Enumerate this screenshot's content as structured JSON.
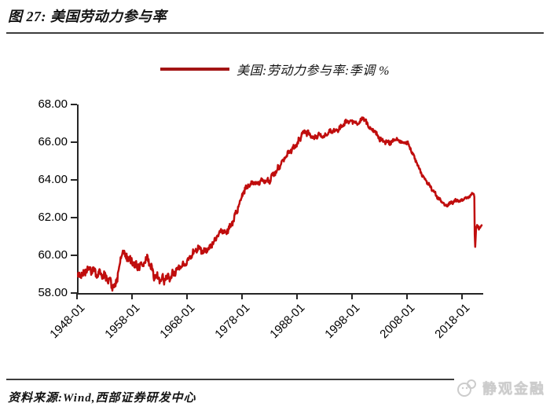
{
  "figure": {
    "title": "图 27: 美国劳动力参与率",
    "source": "资料来源:Wind,西部证券研发中心",
    "watermark": "静观金融"
  },
  "legend": {
    "label": "美国:劳动力参与率:季调 %"
  },
  "colors": {
    "line": "#c00d0d",
    "legend_line": "#a31414",
    "axis": "#262626",
    "rule": "#3d3d3d",
    "watermark": "#cccccc"
  },
  "chart_data": {
    "type": "line",
    "title": "美国劳动力参与率",
    "series_name": "美国:劳动力参与率:季调 %",
    "unit": "%",
    "grid": false,
    "legend_position": "top-center",
    "ylim": [
      58,
      68
    ],
    "y_ticks": [
      "68.00",
      "66.00",
      "64.00",
      "62.00",
      "60.00",
      "58.00"
    ],
    "y_tick_values": [
      68,
      66,
      64,
      62,
      60,
      58
    ],
    "x_ticks": [
      "1948-01",
      "1958-01",
      "1968-01",
      "1978-01",
      "1988-01",
      "1998-01",
      "2008-01",
      "2018-01"
    ],
    "x_range_years": [
      1948,
      2021.5
    ],
    "anchors": [
      [
        1948,
        58.8
      ],
      [
        1949,
        59.0
      ],
      [
        1950,
        59.3
      ],
      [
        1951,
        59.2
      ],
      [
        1952,
        59.0
      ],
      [
        1953,
        58.9
      ],
      [
        1954,
        58.6
      ],
      [
        1954.8,
        58.2
      ],
      [
        1955.5,
        59.1
      ],
      [
        1956.3,
        60.2
      ],
      [
        1957,
        59.9
      ],
      [
        1958,
        59.6
      ],
      [
        1959,
        59.4
      ],
      [
        1960,
        59.6
      ],
      [
        1960.8,
        59.9
      ],
      [
        1961.5,
        59.3
      ],
      [
        1962,
        58.9
      ],
      [
        1963,
        58.8
      ],
      [
        1964,
        58.7
      ],
      [
        1965,
        58.9
      ],
      [
        1966,
        59.2
      ],
      [
        1967,
        59.5
      ],
      [
        1968,
        59.6
      ],
      [
        1969,
        60.1
      ],
      [
        1970,
        60.4
      ],
      [
        1971,
        60.2
      ],
      [
        1972,
        60.4
      ],
      [
        1973,
        60.8
      ],
      [
        1974,
        61.3
      ],
      [
        1975,
        61.2
      ],
      [
        1976,
        61.6
      ],
      [
        1977,
        62.3
      ],
      [
        1978,
        63.2
      ],
      [
        1979,
        63.7
      ],
      [
        1980,
        63.8
      ],
      [
        1981,
        63.9
      ],
      [
        1982,
        64.0
      ],
      [
        1983,
        64.0
      ],
      [
        1984,
        64.4
      ],
      [
        1985,
        64.8
      ],
      [
        1986,
        65.3
      ],
      [
        1987,
        65.6
      ],
      [
        1988,
        65.9
      ],
      [
        1989,
        66.5
      ],
      [
        1990,
        66.5
      ],
      [
        1991,
        66.2
      ],
      [
        1992,
        66.4
      ],
      [
        1993,
        66.3
      ],
      [
        1994,
        66.6
      ],
      [
        1995,
        66.6
      ],
      [
        1996,
        66.8
      ],
      [
        1997,
        67.1
      ],
      [
        1998,
        67.1
      ],
      [
        1999,
        67.0
      ],
      [
        2000,
        67.3
      ],
      [
        2001,
        66.8
      ],
      [
        2002,
        66.6
      ],
      [
        2003,
        66.2
      ],
      [
        2004,
        66.0
      ],
      [
        2005,
        66.0
      ],
      [
        2006,
        66.2
      ],
      [
        2007,
        66.0
      ],
      [
        2008,
        66.0
      ],
      [
        2009,
        65.4
      ],
      [
        2010,
        64.7
      ],
      [
        2011,
        64.1
      ],
      [
        2012,
        63.7
      ],
      [
        2013,
        63.3
      ],
      [
        2014,
        62.9
      ],
      [
        2015,
        62.6
      ],
      [
        2016,
        62.8
      ],
      [
        2017,
        62.9
      ],
      [
        2018,
        62.9
      ],
      [
        2019,
        63.1
      ],
      [
        2020.0,
        63.3
      ],
      [
        2020.15,
        63.4
      ],
      [
        2020.2,
        62.6
      ],
      [
        2020.28,
        60.2
      ],
      [
        2020.4,
        60.8
      ],
      [
        2020.5,
        61.5
      ],
      [
        2020.6,
        61.4
      ],
      [
        2020.7,
        61.7
      ],
      [
        2020.8,
        61.4
      ],
      [
        2020.9,
        61.6
      ],
      [
        2021.0,
        61.4
      ],
      [
        2021.25,
        61.5
      ],
      [
        2021.5,
        61.6
      ]
    ]
  }
}
